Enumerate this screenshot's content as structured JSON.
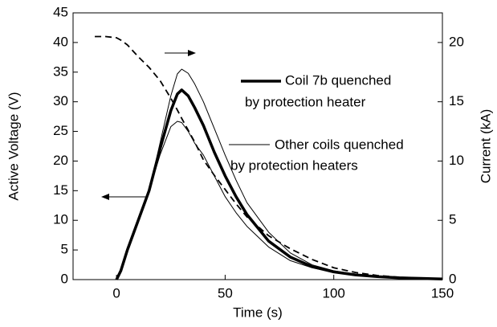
{
  "chart_data": {
    "type": "line",
    "x_label": "Time (s)",
    "y_label": "Active Voltage (V)",
    "y2_label": "Current (kA)",
    "xlim": [
      -20,
      150
    ],
    "xticks": [
      0,
      50,
      100,
      150
    ],
    "ylim": [
      0,
      45
    ],
    "yticks": [
      0,
      5,
      10,
      15,
      20,
      25,
      30,
      35,
      40,
      45
    ],
    "y2lim": [
      0,
      22.5
    ],
    "y2ticks": [
      0,
      5,
      10,
      15,
      20
    ],
    "x": [
      -10,
      -5,
      0,
      2,
      5,
      7,
      10,
      15,
      20,
      25,
      28,
      30,
      33,
      36,
      40,
      45,
      50,
      55,
      60,
      70,
      80,
      90,
      100,
      110,
      120,
      130,
      140,
      150
    ],
    "series": [
      {
        "color": "#000000",
        "width": 1.8,
        "dash": "8,5",
        "axis": "y2",
        "values": [
          20.5,
          20.5,
          20.4,
          20.2,
          19.8,
          19.4,
          18.8,
          17.9,
          16.8,
          15.3,
          14.3,
          13.6,
          12.6,
          11.6,
          10.1,
          8.8,
          7.6,
          6.4,
          5.3,
          3.7,
          2.6,
          1.7,
          1.0,
          0.6,
          0.35,
          0.2,
          0.1,
          0.05
        ]
      },
      {
        "color": "#000000",
        "width": 1,
        "values": [
          null,
          null,
          0,
          1.5,
          5,
          7,
          10,
          15,
          23,
          31,
          34.7,
          35.5,
          34.8,
          33,
          30,
          25.5,
          21,
          16.8,
          13,
          8,
          4.5,
          2.5,
          1.5,
          0.9,
          0.5,
          0.3,
          0.2,
          0.1
        ]
      },
      {
        "color": "#000000",
        "width": 1,
        "values": [
          null,
          null,
          0,
          1.5,
          5,
          7,
          10,
          15,
          21,
          25.8,
          26.7,
          26.5,
          25,
          23,
          21,
          17.5,
          14,
          11.3,
          9,
          5.5,
          3.2,
          2,
          1.2,
          0.7,
          0.4,
          0.3,
          0.2,
          0.1
        ]
      },
      {
        "color": "#000000",
        "width": 3.5,
        "values": [
          null,
          null,
          0,
          1.5,
          5,
          7,
          10,
          15,
          22,
          28.5,
          31.3,
          32,
          31,
          29,
          26,
          21.5,
          17.5,
          14,
          11,
          6.5,
          3.8,
          2.2,
          1.3,
          0.8,
          0.5,
          0.3,
          0.2,
          0.1
        ]
      }
    ],
    "annotations": [
      {
        "lines": [
          "Coil 7b quenched",
          "by protection heater"
        ]
      },
      {
        "lines": [
          "Other coils quenched",
          "by protection heaters"
        ]
      }
    ]
  }
}
